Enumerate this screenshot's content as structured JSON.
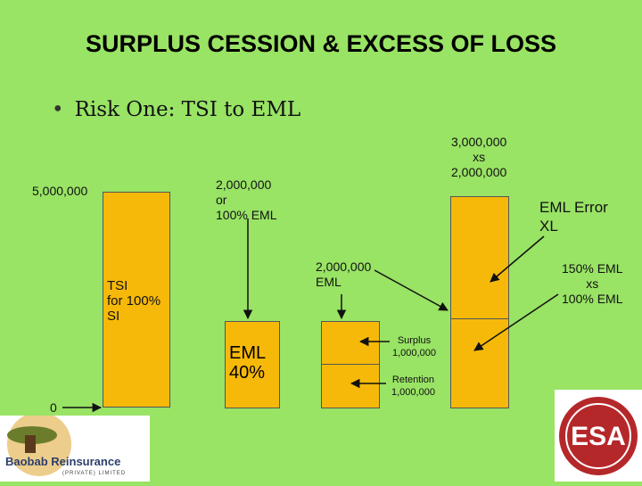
{
  "slide": {
    "title": "SURPLUS CESSION & EXCESS OF LOSS",
    "bullet": "Risk One: TSI to EML"
  },
  "labels": {
    "tsi_top": "5,000,000",
    "tsi_bottom": "0",
    "tsi_box_line1": "TSI",
    "tsi_box_line2": "for 100%",
    "tsi_box_line3": "SI",
    "eml_top_line1": "2,000,000",
    "eml_top_line2": "or",
    "eml_top_line3": "100% EML",
    "eml_box_line1": "EML",
    "eml_box_line2": "40%",
    "mid_line1": "2,000,000",
    "mid_line2": "EML",
    "surplus_line1": "Surplus",
    "surplus_line2": "1,000,000",
    "retention_line1": "Retention",
    "retention_line2": "1,000,000",
    "xs_line1": "3,000,000",
    "xs_line2": "xs",
    "xs_line3": "2,000,000",
    "error_line1": "EML Error",
    "error_line2": "XL",
    "pct_line1": "150% EML",
    "pct_line2": "xs",
    "pct_line3": "100% EML"
  },
  "logos": {
    "left": "Baobab Reinsurance",
    "left_sub": "(PRIVATE) LIMITED",
    "right": "ESA"
  },
  "colors": {
    "background": "#99e365",
    "box": "#f7b909",
    "logo_red": "#b5282a"
  }
}
